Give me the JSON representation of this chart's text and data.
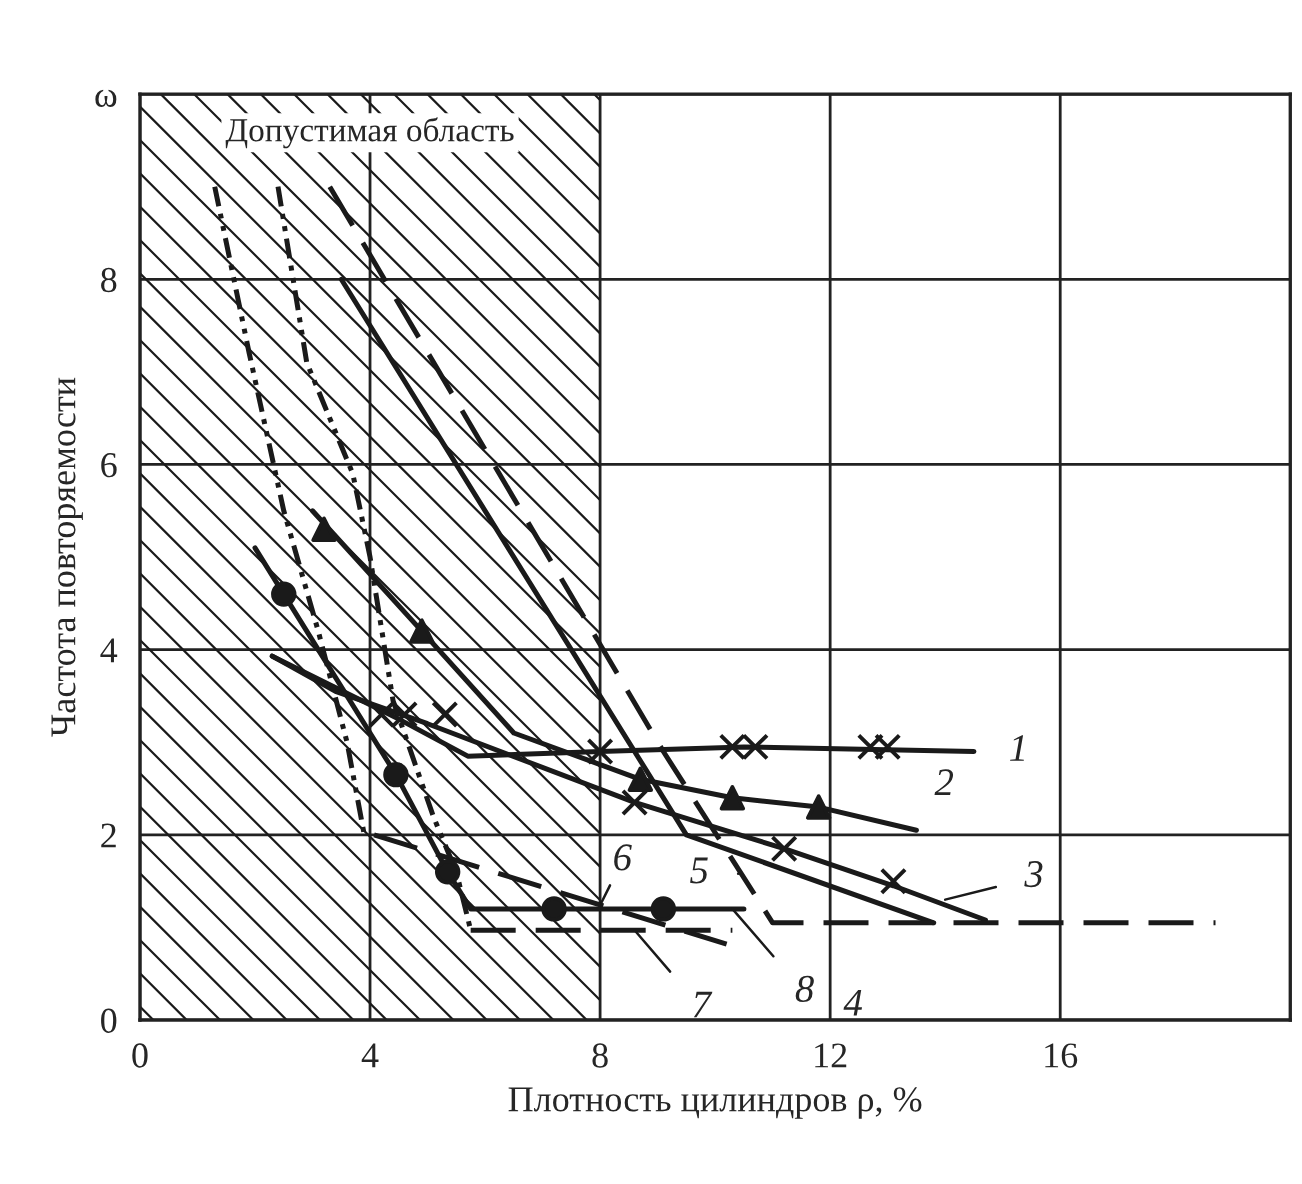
{
  "chart_data": {
    "type": "line",
    "xlabel": "Плотность цилиндров ρ, %",
    "ylabel": "Частота повторяемости",
    "xlim": [
      0,
      20
    ],
    "ylim": [
      0,
      10
    ],
    "xticks": [
      0,
      4,
      8,
      12,
      16
    ],
    "yticks": [
      0,
      2,
      4,
      6,
      8,
      {
        "value": 10,
        "label": "ω"
      }
    ],
    "grid": true,
    "bands": [
      {
        "axis": "x",
        "from": 0,
        "to": 8,
        "label": "Допустимая область",
        "color": "#1a1a1a"
      }
    ],
    "series": [
      {
        "type": "line",
        "color": "#1a1a1a",
        "line_style": "solid",
        "x": [
          2.3,
          4.5,
          5.7,
          8.0,
          10.5,
          14.5
        ],
        "values": [
          3.93,
          3.25,
          2.85,
          2.9,
          2.95,
          2.9
        ]
      },
      {
        "type": "scatter",
        "color": "#1a1a1a",
        "marker": "cross",
        "x": [
          4.2,
          4.6,
          5.3,
          8.0,
          10.3,
          10.7,
          12.7,
          13.0
        ],
        "values": [
          3.3,
          3.3,
          3.3,
          2.9,
          2.95,
          2.95,
          2.95,
          2.95
        ]
      },
      {
        "type": "line",
        "color": "#1a1a1a",
        "line_style": "solid",
        "x": [
          3.0,
          4.9,
          6.5,
          8.7,
          10.3,
          11.8,
          13.5
        ],
        "values": [
          5.5,
          4.2,
          3.1,
          2.6,
          2.4,
          2.3,
          2.05
        ]
      },
      {
        "type": "scatter",
        "color": "#1a1a1a",
        "marker": "triangle",
        "x": [
          3.2,
          4.9,
          8.7,
          10.3,
          11.8
        ],
        "values": [
          5.3,
          4.2,
          2.6,
          2.4,
          2.3
        ]
      },
      {
        "type": "line",
        "color": "#1a1a1a",
        "line_style": "solid",
        "x": [
          2.3,
          3.4,
          5.0,
          8.6,
          11.2,
          13.1,
          14.7
        ],
        "values": [
          3.93,
          3.55,
          3.2,
          2.35,
          1.85,
          1.45,
          1.08
        ]
      },
      {
        "type": "scatter",
        "color": "#1a1a1a",
        "marker": "cross",
        "x": [
          8.6,
          11.2,
          13.1
        ],
        "values": [
          2.35,
          1.85,
          1.5
        ]
      },
      {
        "type": "line",
        "color": "#1a1a1a",
        "line_style": "solid",
        "x": [
          3.5,
          9.5,
          13.8
        ],
        "values": [
          8.0,
          2.0,
          1.05
        ]
      },
      {
        "type": "line",
        "color": "#1a1a1a",
        "line_style": "dashed",
        "x": [
          3.3,
          9.1,
          11.0,
          18.7
        ],
        "values": [
          9.0,
          2.9,
          1.05,
          1.05
        ]
      },
      {
        "type": "line",
        "color": "#1a1a1a",
        "line_style": "dotted",
        "x": [
          1.3,
          1.9,
          2.5,
          3.1,
          3.6,
          3.9
        ],
        "values": [
          9.0,
          7.2,
          5.5,
          4.2,
          3.0,
          2.0
        ]
      },
      {
        "type": "line",
        "color": "#1a1a1a",
        "line_style": "dashed",
        "x": [
          4.07,
          10.2
        ],
        "values": [
          2.0,
          0.82
        ]
      },
      {
        "type": "line",
        "color": "#1a1a1a",
        "line_style": "dotted",
        "x": [
          2.4,
          2.9,
          3.7,
          4.0,
          4.4,
          5.1,
          5.5,
          5.75
        ],
        "values": [
          9.0,
          7.1,
          5.9,
          5.0,
          3.45,
          2.2,
          1.6,
          0.97
        ]
      },
      {
        "type": "line",
        "color": "#1a1a1a",
        "line_style": "dashed",
        "x": [
          5.75,
          10.3
        ],
        "values": [
          0.97,
          0.97
        ]
      },
      {
        "type": "line",
        "color": "#1a1a1a",
        "line_style": "solid",
        "x": [
          2.0,
          2.5,
          4.45,
          5.35,
          5.75,
          10.5
        ],
        "values": [
          5.1,
          4.6,
          2.65,
          1.6,
          1.2,
          1.2
        ]
      },
      {
        "type": "scatter",
        "color": "#1a1a1a",
        "marker": "circle",
        "x": [
          2.5,
          4.45,
          5.35,
          7.2,
          9.1
        ],
        "values": [
          4.6,
          2.65,
          1.6,
          1.2,
          1.2
        ]
      }
    ],
    "annotations": [
      {
        "text": "1",
        "x": 14.5,
        "y": 2.9
      },
      {
        "text": "2",
        "x": 13.5,
        "y": 2.05
      },
      {
        "text": "3",
        "x": 14.0,
        "y": 1.3
      },
      {
        "text": "4",
        "x": 12.4,
        "y": 1.05
      },
      {
        "text": "5",
        "x": 10.4,
        "y": 1.58
      },
      {
        "text": "6",
        "x": 8.0,
        "y": 1.24
      },
      {
        "text": "7",
        "x": 8.6,
        "y": 0.97
      },
      {
        "text": "8",
        "x": 10.3,
        "y": 1.2
      }
    ]
  }
}
